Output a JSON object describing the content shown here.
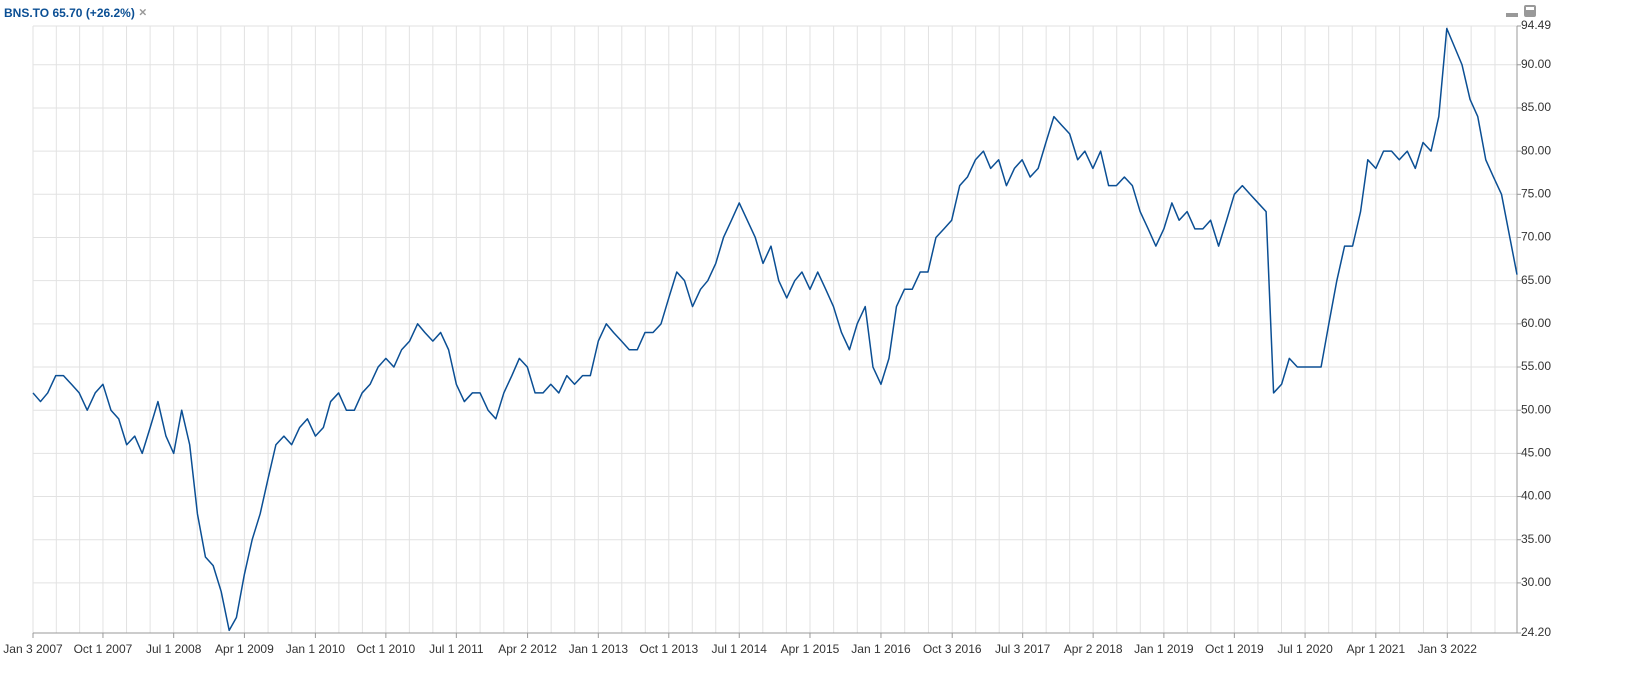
{
  "chart_data": {
    "type": "line",
    "title": "BNS.TO 65.70 (+26.2%)",
    "close": "×",
    "x": [
      "2007-01-03",
      "2007-02-01",
      "2007-03-01",
      "2007-04-01",
      "2007-05-01",
      "2007-06-01",
      "2007-07-01",
      "2007-08-01",
      "2007-09-01",
      "2007-10-01",
      "2007-11-01",
      "2007-12-01",
      "2008-01-01",
      "2008-02-01",
      "2008-03-01",
      "2008-04-01",
      "2008-05-01",
      "2008-06-01",
      "2008-07-01",
      "2008-08-01",
      "2008-09-01",
      "2008-10-01",
      "2008-11-01",
      "2008-12-01",
      "2009-01-01",
      "2009-02-01",
      "2009-03-01",
      "2009-04-01",
      "2009-05-01",
      "2009-06-01",
      "2009-07-01",
      "2009-08-01",
      "2009-09-01",
      "2009-10-01",
      "2009-11-01",
      "2009-12-01",
      "2010-01-01",
      "2010-02-01",
      "2010-03-01",
      "2010-04-01",
      "2010-05-01",
      "2010-06-01",
      "2010-07-01",
      "2010-08-01",
      "2010-09-01",
      "2010-10-01",
      "2010-11-01",
      "2010-12-01",
      "2011-01-01",
      "2011-02-01",
      "2011-03-01",
      "2011-04-01",
      "2011-05-01",
      "2011-06-01",
      "2011-07-01",
      "2011-08-01",
      "2011-09-01",
      "2011-10-01",
      "2011-11-01",
      "2011-12-01",
      "2012-01-01",
      "2012-02-01",
      "2012-03-01",
      "2012-04-01",
      "2012-05-01",
      "2012-06-01",
      "2012-07-01",
      "2012-08-01",
      "2012-09-01",
      "2012-10-01",
      "2012-11-01",
      "2012-12-01",
      "2013-01-01",
      "2013-02-01",
      "2013-03-01",
      "2013-04-01",
      "2013-05-01",
      "2013-06-01",
      "2013-07-01",
      "2013-08-01",
      "2013-09-01",
      "2013-10-01",
      "2013-11-01",
      "2013-12-01",
      "2014-01-01",
      "2014-02-01",
      "2014-03-01",
      "2014-04-01",
      "2014-05-01",
      "2014-06-01",
      "2014-07-01",
      "2014-08-01",
      "2014-09-01",
      "2014-10-01",
      "2014-11-01",
      "2014-12-01",
      "2015-01-01",
      "2015-02-01",
      "2015-03-01",
      "2015-04-01",
      "2015-05-01",
      "2015-06-01",
      "2015-07-01",
      "2015-08-01",
      "2015-09-01",
      "2015-10-01",
      "2015-11-01",
      "2015-12-01",
      "2016-01-01",
      "2016-02-01",
      "2016-03-01",
      "2016-04-01",
      "2016-05-01",
      "2016-06-01",
      "2016-07-01",
      "2016-08-01",
      "2016-09-01",
      "2016-10-01",
      "2016-11-01",
      "2016-12-01",
      "2017-01-01",
      "2017-02-01",
      "2017-03-01",
      "2017-04-01",
      "2017-05-01",
      "2017-06-01",
      "2017-07-01",
      "2017-08-01",
      "2017-09-01",
      "2017-10-01",
      "2017-11-01",
      "2017-12-01",
      "2018-01-01",
      "2018-02-01",
      "2018-03-01",
      "2018-04-01",
      "2018-05-01",
      "2018-06-01",
      "2018-07-01",
      "2018-08-01",
      "2018-09-01",
      "2018-10-01",
      "2018-11-01",
      "2018-12-01",
      "2019-01-01",
      "2019-02-01",
      "2019-03-01",
      "2019-04-01",
      "2019-05-01",
      "2019-06-01",
      "2019-07-01",
      "2019-08-01",
      "2019-09-01",
      "2019-10-01",
      "2019-11-01",
      "2019-12-01",
      "2020-01-01",
      "2020-02-01",
      "2020-03-01",
      "2020-04-01",
      "2020-05-01",
      "2020-06-01",
      "2020-07-01",
      "2020-08-01",
      "2020-09-01",
      "2020-10-01",
      "2020-11-01",
      "2020-12-01",
      "2021-01-01",
      "2021-02-01",
      "2021-03-01",
      "2021-04-01",
      "2021-05-01",
      "2021-06-01",
      "2021-07-01",
      "2021-08-01",
      "2021-09-01",
      "2021-10-01",
      "2021-11-01",
      "2021-12-01",
      "2022-01-01",
      "2022-02-01",
      "2022-03-01",
      "2022-04-01",
      "2022-05-01",
      "2022-06-01",
      "2022-07-01",
      "2022-08-01",
      "2022-09-30"
    ],
    "series": [
      {
        "name": "BNS.TO",
        "color": "#0b4f94",
        "values": [
          52,
          51,
          52,
          54,
          54,
          53,
          52,
          50,
          52,
          53,
          50,
          49,
          46,
          47,
          45,
          48,
          51,
          47,
          45,
          50,
          46,
          38,
          33,
          32,
          29,
          24.5,
          26,
          31,
          35,
          38,
          42,
          46,
          47,
          46,
          48,
          49,
          47,
          48,
          51,
          52,
          50,
          50,
          52,
          53,
          55,
          56,
          55,
          57,
          58,
          60,
          59,
          58,
          59,
          57,
          53,
          51,
          52,
          52,
          50,
          49,
          52,
          54,
          56,
          55,
          52,
          52,
          53,
          52,
          54,
          53,
          54,
          54,
          58,
          60,
          59,
          58,
          57,
          57,
          59,
          59,
          60,
          63,
          66,
          65,
          62,
          64,
          65,
          67,
          70,
          72,
          74,
          72,
          70,
          67,
          69,
          65,
          63,
          65,
          66,
          64,
          66,
          64,
          62,
          59,
          57,
          60,
          62,
          55,
          53,
          56,
          62,
          64,
          64,
          66,
          66,
          70,
          71,
          72,
          76,
          77,
          79,
          80,
          78,
          79,
          76,
          78,
          79,
          77,
          78,
          81,
          84,
          83,
          82,
          79,
          80,
          78,
          80,
          76,
          76,
          77,
          76,
          73,
          71,
          69,
          71,
          74,
          72,
          73,
          71,
          71,
          72,
          69,
          72,
          75,
          76,
          75,
          74,
          73,
          52,
          53,
          56,
          55,
          55,
          55,
          55,
          60,
          65,
          69,
          69,
          73,
          79,
          78,
          80,
          80,
          79,
          80,
          78,
          81,
          80,
          84,
          94.2,
          92,
          90,
          86,
          84,
          79,
          77,
          75,
          65.7
        ]
      }
    ],
    "xlim": [
      "2007-01-03",
      "2022-09-30"
    ],
    "xticks": [
      {
        "value": "2007-01-03",
        "label": "Jan 3 2007"
      },
      {
        "value": "2007-10-01",
        "label": "Oct 1 2007"
      },
      {
        "value": "2008-07-01",
        "label": "Jul 1 2008"
      },
      {
        "value": "2009-04-01",
        "label": "Apr 1 2009"
      },
      {
        "value": "2010-01-01",
        "label": "Jan 1 2010"
      },
      {
        "value": "2010-10-01",
        "label": "Oct 1 2010"
      },
      {
        "value": "2011-07-01",
        "label": "Jul 1 2011"
      },
      {
        "value": "2012-04-02",
        "label": "Apr 2 2012"
      },
      {
        "value": "2013-01-01",
        "label": "Jan 1 2013"
      },
      {
        "value": "2013-10-01",
        "label": "Oct 1 2013"
      },
      {
        "value": "2014-07-01",
        "label": "Jul 1 2014"
      },
      {
        "value": "2015-04-01",
        "label": "Apr 1 2015"
      },
      {
        "value": "2016-01-01",
        "label": "Jan 1 2016"
      },
      {
        "value": "2016-10-03",
        "label": "Oct 3 2016"
      },
      {
        "value": "2017-07-03",
        "label": "Jul 3 2017"
      },
      {
        "value": "2018-04-02",
        "label": "Apr 2 2018"
      },
      {
        "value": "2019-01-01",
        "label": "Jan 1 2019"
      },
      {
        "value": "2019-10-01",
        "label": "Oct 1 2019"
      },
      {
        "value": "2020-07-01",
        "label": "Jul 1 2020"
      },
      {
        "value": "2021-04-01",
        "label": "Apr 1 2021"
      },
      {
        "value": "2022-01-03",
        "label": "Jan 3 2022"
      }
    ],
    "ylim": [
      24.2,
      94.49
    ],
    "yticks": [
      {
        "value": 24.2,
        "label": "24.20"
      },
      {
        "value": 30,
        "label": "30.00"
      },
      {
        "value": 35,
        "label": "35.00"
      },
      {
        "value": 40,
        "label": "40.00"
      },
      {
        "value": 45,
        "label": "45.00"
      },
      {
        "value": 50,
        "label": "50.00"
      },
      {
        "value": 55,
        "label": "55.00"
      },
      {
        "value": 60,
        "label": "60.00"
      },
      {
        "value": 65,
        "label": "65.00"
      },
      {
        "value": 70,
        "label": "70.00"
      },
      {
        "value": 75,
        "label": "75.00"
      },
      {
        "value": 80,
        "label": "80.00"
      },
      {
        "value": 85,
        "label": "85.00"
      },
      {
        "value": 90,
        "label": "90.00"
      },
      {
        "value": 94.49,
        "label": "94.49"
      }
    ],
    "grid": true
  }
}
